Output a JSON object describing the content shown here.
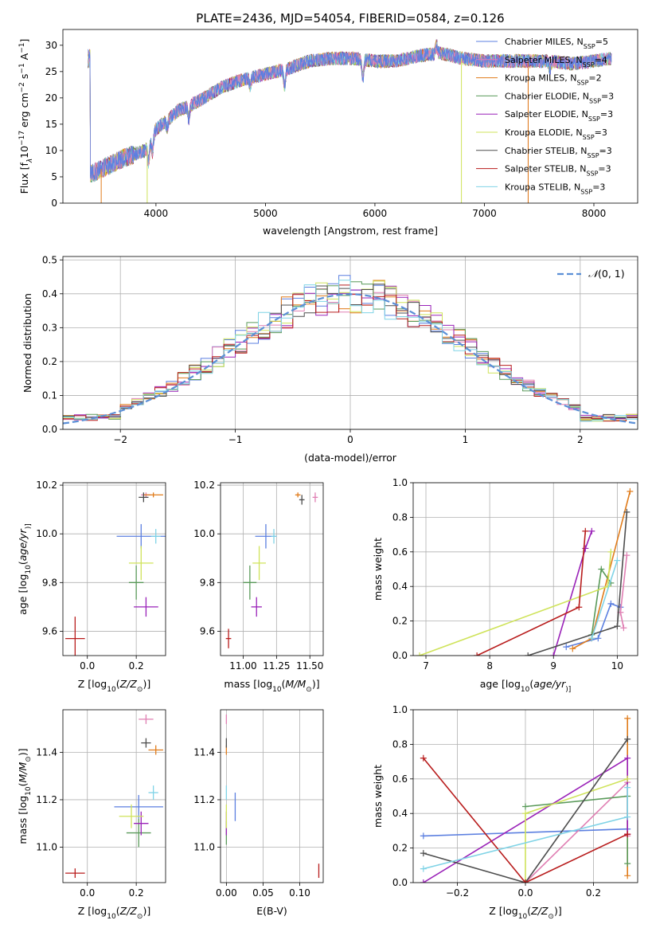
{
  "figure": {
    "title": "PLATE=2436, MJD=54054, FIBERID=0584, z=0.126"
  },
  "models": [
    {
      "name": "Chabrier MILES, N<sub>SSP</sub>=5",
      "label": "Chabrier MILES, N",
      "sub": "SSP",
      "tail": "=5",
      "color": "#5b7fe0"
    },
    {
      "name": "Salpeter MILES",
      "label": "Salpeter MILES, N",
      "sub": "SSP",
      "tail": "=4",
      "color": "#e07fb3"
    },
    {
      "name": "Kroupa MILES",
      "label": "Kroupa MILES, N",
      "sub": "SSP",
      "tail": "=2",
      "color": "#e07b1a"
    },
    {
      "name": "Chabrier ELODIE",
      "label": "Chabrier ELODIE, N",
      "sub": "SSP",
      "tail": "=3",
      "color": "#5a9a5a"
    },
    {
      "name": "Salpeter ELODIE",
      "label": "Salpeter ELODIE, N",
      "sub": "SSP",
      "tail": "=3",
      "color": "#9a22b8"
    },
    {
      "name": "Kroupa ELODIE",
      "label": "Kroupa ELODIE, N",
      "sub": "SSP",
      "tail": "=3",
      "color": "#cfe35a"
    },
    {
      "name": "Chabrier STELIB",
      "label": "Chabrier STELIB, N",
      "sub": "SSP",
      "tail": "=3",
      "color": "#4d4d4d"
    },
    {
      "name": "Salpeter STELIB",
      "label": "Salpeter STELIB, N",
      "sub": "SSP",
      "tail": "=3",
      "color": "#b81c1c"
    },
    {
      "name": "Kroupa STELIB",
      "label": "Kroupa STELIB, N",
      "sub": "SSP",
      "tail": "=3",
      "color": "#7fd3e6"
    }
  ],
  "chart_data": [
    {
      "id": "spectrum",
      "type": "line",
      "xlabel": "wavelength [Angstrom, rest frame]",
      "ylabel_parts": [
        "Flux [f",
        "λ",
        "10",
        "−17",
        " erg cm",
        "−2",
        " s",
        "−1",
        " A",
        "−1",
        "]"
      ],
      "xlim": [
        3150,
        8400
      ],
      "ylim": [
        0,
        33
      ],
      "xticks": [
        4000,
        5000,
        6000,
        7000,
        8000
      ],
      "yticks": [
        0,
        5,
        10,
        15,
        20,
        25,
        30
      ],
      "continuum": [
        [
          3400,
          5.5
        ],
        [
          3500,
          6.5
        ],
        [
          3700,
          8.5
        ],
        [
          3900,
          10
        ],
        [
          4000,
          14
        ],
        [
          4200,
          17.5
        ],
        [
          4400,
          19.5
        ],
        [
          4600,
          22
        ],
        [
          4800,
          23.5
        ],
        [
          5000,
          24.5
        ],
        [
          5200,
          25.5
        ],
        [
          5400,
          27
        ],
        [
          5600,
          27.5
        ],
        [
          5800,
          27.5
        ],
        [
          6000,
          27
        ],
        [
          6200,
          27
        ],
        [
          6400,
          28
        ],
        [
          6600,
          28.5
        ],
        [
          6800,
          27.5
        ],
        [
          7000,
          27
        ],
        [
          7200,
          27
        ],
        [
          7400,
          27
        ],
        [
          7600,
          27
        ],
        [
          7800,
          26.5
        ],
        [
          8000,
          27
        ],
        [
          8150,
          27.5
        ]
      ],
      "absorption": [
        [
          3933,
          3.5
        ],
        [
          3968,
          3
        ],
        [
          4102,
          1.5
        ],
        [
          4300,
          2.5
        ],
        [
          4861,
          1.5
        ],
        [
          5175,
          3
        ],
        [
          5890,
          3.5
        ],
        [
          6563,
          -1.5
        ],
        [
          7600,
          1.5
        ]
      ],
      "grid": false,
      "legend": "upper right"
    },
    {
      "id": "residuals",
      "type": "histogram",
      "xlabel": "(data-model)/error",
      "ylabel": "Normed distribution",
      "xlim": [
        -2.5,
        2.5
      ],
      "ylim": [
        0,
        0.51
      ],
      "xticks": [
        -2,
        -1,
        0,
        1,
        2
      ],
      "yticks": [
        0,
        0.1,
        0.2,
        0.3,
        0.4,
        0.5
      ],
      "bin_width": 0.1,
      "reference": {
        "label_parts": [
          "𝒩",
          "(0, 1)"
        ],
        "color": "#5b8fd6"
      },
      "grid": true,
      "legend": "upper right"
    },
    {
      "id": "age-vs-Z",
      "type": "scatter",
      "xlabel_parts": [
        "Z [log",
        "10",
        "(",
        "Z/Z",
        "⊙",
        ")]"
      ],
      "ylabel_parts": [
        "age  [log",
        "10",
        "(",
        "age/yr",
        ")]"
      ],
      "xlim": [
        -0.1,
        0.32
      ],
      "ylim": [
        9.5,
        10.21
      ],
      "xticks": [
        0.0,
        0.2
      ],
      "yticks": [
        9.6,
        9.8,
        10.0,
        10.2
      ],
      "points": [
        {
          "model": 0,
          "x": 0.22,
          "xerr": 0.1,
          "y": 9.99,
          "yerr": 0.05
        },
        {
          "model": 1,
          "x": 0.24,
          "xerr": 0.02,
          "y": 10.16,
          "yerr": 0.01
        },
        {
          "model": 2,
          "x": 0.27,
          "xerr": 0.04,
          "y": 10.16,
          "yerr": 0.01
        },
        {
          "model": 3,
          "x": 0.2,
          "xerr": 0.03,
          "y": 9.8,
          "yerr": 0.07
        },
        {
          "model": 4,
          "x": 0.24,
          "xerr": 0.05,
          "y": 9.7,
          "yerr": 0.04
        },
        {
          "model": 5,
          "x": 0.22,
          "xerr": 0.05,
          "y": 9.88,
          "yerr": 0.07
        },
        {
          "model": 6,
          "x": 0.23,
          "xerr": 0.02,
          "y": 10.15,
          "yerr": 0.02
        },
        {
          "model": 7,
          "x": -0.05,
          "xerr": 0.04,
          "y": 9.57,
          "yerr": 0.09
        },
        {
          "model": 8,
          "x": 0.28,
          "xerr": 0.02,
          "y": 9.99,
          "yerr": 0.03
        }
      ],
      "grid": true
    },
    {
      "id": "age-vs-mass",
      "type": "scatter",
      "xlabel_parts": [
        "mass [log",
        "10",
        "(",
        "M/M",
        "⊙",
        ")]"
      ],
      "xlim": [
        10.83,
        11.6
      ],
      "ylim": [
        9.5,
        10.21
      ],
      "xticks": [
        11.0,
        11.25,
        11.5
      ],
      "yticks": [
        9.6,
        9.8,
        10.0,
        10.2
      ],
      "points": [
        {
          "model": 0,
          "x": 11.17,
          "xerr": 0.08,
          "y": 9.99,
          "yerr": 0.05
        },
        {
          "model": 1,
          "x": 11.54,
          "xerr": 0.02,
          "y": 10.15,
          "yerr": 0.02
        },
        {
          "model": 2,
          "x": 11.41,
          "xerr": 0.02,
          "y": 10.16,
          "yerr": 0.01
        },
        {
          "model": 3,
          "x": 11.05,
          "xerr": 0.05,
          "y": 9.8,
          "yerr": 0.07
        },
        {
          "model": 4,
          "x": 11.1,
          "xerr": 0.04,
          "y": 9.7,
          "yerr": 0.04
        },
        {
          "model": 5,
          "x": 11.12,
          "xerr": 0.05,
          "y": 9.88,
          "yerr": 0.07
        },
        {
          "model": 6,
          "x": 11.44,
          "xerr": 0.02,
          "y": 10.14,
          "yerr": 0.02
        },
        {
          "model": 7,
          "x": 10.89,
          "xerr": 0.02,
          "y": 9.57,
          "yerr": 0.04
        },
        {
          "model": 8,
          "x": 11.23,
          "xerr": 0.02,
          "y": 9.99,
          "yerr": 0.03
        }
      ],
      "grid": true
    },
    {
      "id": "weight-vs-age",
      "type": "line",
      "xlabel_parts": [
        "age  [log",
        "10",
        "(",
        "age/yr",
        ")]"
      ],
      "ylabel": "mass weight",
      "xlim": [
        6.8,
        10.32
      ],
      "ylim": [
        0,
        1
      ],
      "xticks": [
        7,
        8,
        9,
        10
      ],
      "yticks": [
        0.0,
        0.2,
        0.4,
        0.6,
        0.8,
        1.0
      ],
      "series": [
        {
          "model": 0,
          "points": [
            [
              9.2,
              0.05
            ],
            [
              9.7,
              0.1
            ],
            [
              9.9,
              0.3
            ],
            [
              10.05,
              0.28
            ]
          ]
        },
        {
          "model": 1,
          "points": [
            [
              10.1,
              0.16
            ],
            [
              10.05,
              0.25
            ],
            [
              10.15,
              0.58
            ]
          ]
        },
        {
          "model": 2,
          "points": [
            [
              9.3,
              0.04
            ],
            [
              9.6,
              0.1
            ],
            [
              10.2,
              0.95
            ]
          ]
        },
        {
          "model": 3,
          "points": [
            [
              9.6,
              0.12
            ],
            [
              9.75,
              0.5
            ],
            [
              9.9,
              0.42
            ]
          ]
        },
        {
          "model": 4,
          "points": [
            [
              9.0,
              0.0
            ],
            [
              9.5,
              0.62
            ],
            [
              9.6,
              0.72
            ]
          ]
        },
        {
          "model": 5,
          "points": [
            [
              6.9,
              0.0
            ],
            [
              9.85,
              0.4
            ],
            [
              9.9,
              0.6
            ]
          ]
        },
        {
          "model": 6,
          "points": [
            [
              8.6,
              0.0
            ],
            [
              10.0,
              0.17
            ],
            [
              10.15,
              0.83
            ]
          ]
        },
        {
          "model": 7,
          "points": [
            [
              7.8,
              0.0
            ],
            [
              9.4,
              0.28
            ],
            [
              9.5,
              0.72
            ]
          ]
        },
        {
          "model": 8,
          "points": [
            [
              9.6,
              0.1
            ],
            [
              10.0,
              0.55
            ]
          ]
        }
      ],
      "grid": true
    },
    {
      "id": "mass-vs-Z",
      "type": "scatter",
      "xlabel_parts": [
        "Z [log",
        "10",
        "(",
        "Z/Z",
        "⊙",
        ")]"
      ],
      "ylabel_parts": [
        "mass [log",
        "10",
        "(",
        "M/M",
        "⊙",
        ")]"
      ],
      "xlim": [
        -0.1,
        0.32
      ],
      "ylim": [
        10.85,
        11.58
      ],
      "xticks": [
        0.0,
        0.2
      ],
      "yticks": [
        11.0,
        11.2,
        11.4
      ],
      "points": [
        {
          "model": 0,
          "x": 0.21,
          "xerr": 0.1,
          "y": 11.17,
          "yerr": 0.05
        },
        {
          "model": 1,
          "x": 0.24,
          "xerr": 0.03,
          "y": 11.54,
          "yerr": 0.02
        },
        {
          "model": 2,
          "x": 0.28,
          "xerr": 0.03,
          "y": 11.41,
          "yerr": 0.02
        },
        {
          "model": 3,
          "x": 0.21,
          "xerr": 0.05,
          "y": 11.06,
          "yerr": 0.06
        },
        {
          "model": 4,
          "x": 0.22,
          "xerr": 0.03,
          "y": 11.1,
          "yerr": 0.05
        },
        {
          "model": 5,
          "x": 0.18,
          "xerr": 0.05,
          "y": 11.13,
          "yerr": 0.05
        },
        {
          "model": 6,
          "x": 0.24,
          "xerr": 0.02,
          "y": 11.44,
          "yerr": 0.02
        },
        {
          "model": 7,
          "x": -0.05,
          "xerr": 0.04,
          "y": 10.89,
          "yerr": 0.02
        },
        {
          "model": 8,
          "x": 0.27,
          "xerr": 0.02,
          "y": 11.23,
          "yerr": 0.03
        }
      ],
      "grid": true
    },
    {
      "id": "mass-vs-ebv",
      "type": "scatter",
      "xlabel": "E(B-V)",
      "xlim": [
        -0.008,
        0.132
      ],
      "ylim": [
        10.85,
        11.58
      ],
      "xticks": [
        0.0,
        0.05,
        0.1
      ],
      "yticks": [
        11.0,
        11.2,
        11.4
      ],
      "points": [
        {
          "model": 0,
          "x": 0.012,
          "xerr": 0.0,
          "y": 11.17,
          "yerr": 0.06
        },
        {
          "model": 1,
          "x": 0.0,
          "xerr": 0.0,
          "y": 11.54,
          "yerr": 0.02
        },
        {
          "model": 2,
          "x": 0.0,
          "xerr": 0.0,
          "y": 11.41,
          "yerr": 0.02
        },
        {
          "model": 3,
          "x": 0.0,
          "xerr": 0.0,
          "y": 11.06,
          "yerr": 0.05
        },
        {
          "model": 4,
          "x": 0.0,
          "xerr": 0.0,
          "y": 11.1,
          "yerr": 0.05
        },
        {
          "model": 5,
          "x": 0.0,
          "xerr": 0.0,
          "y": 11.13,
          "yerr": 0.05
        },
        {
          "model": 6,
          "x": 0.0,
          "xerr": 0.0,
          "y": 11.44,
          "yerr": 0.02
        },
        {
          "model": 7,
          "x": 0.126,
          "xerr": 0.0,
          "y": 10.9,
          "yerr": 0.03
        },
        {
          "model": 8,
          "x": 0.0,
          "xerr": 0.0,
          "y": 11.23,
          "yerr": 0.03
        }
      ],
      "grid": true
    },
    {
      "id": "weight-vs-Z",
      "type": "line",
      "xlabel_parts": [
        "Z [log",
        "10",
        "(",
        "Z/Z",
        "⊙",
        ")]"
      ],
      "ylabel": "mass weight",
      "xlim": [
        -0.33,
        0.33
      ],
      "ylim": [
        0,
        1
      ],
      "xticks": [
        -0.2,
        0.0,
        0.2
      ],
      "yticks": [
        0.0,
        0.2,
        0.4,
        0.6,
        0.8,
        1.0
      ],
      "series": [
        {
          "model": 0,
          "points": [
            [
              -0.3,
              0.27
            ],
            [
              0.3,
              0.31
            ]
          ]
        },
        {
          "model": 1,
          "points": [
            [
              0.0,
              0.0
            ],
            [
              0.3,
              0.58
            ],
            [
              0.3,
              0.27
            ]
          ]
        },
        {
          "model": 2,
          "points": [
            [
              0.3,
              0.04
            ],
            [
              0.3,
              0.95
            ]
          ]
        },
        {
          "model": 3,
          "points": [
            [
              0.0,
              0.44
            ],
            [
              0.3,
              0.5
            ],
            [
              0.3,
              0.11
            ]
          ]
        },
        {
          "model": 4,
          "points": [
            [
              -0.3,
              0.0
            ],
            [
              0.3,
              0.72
            ],
            [
              0.3,
              0.28
            ]
          ]
        },
        {
          "model": 5,
          "points": [
            [
              0.0,
              0.0
            ],
            [
              0.0,
              0.4
            ],
            [
              0.3,
              0.6
            ]
          ]
        },
        {
          "model": 6,
          "points": [
            [
              -0.3,
              0.17
            ],
            [
              0.0,
              0.0
            ],
            [
              0.3,
              0.83
            ]
          ]
        },
        {
          "model": 7,
          "points": [
            [
              -0.3,
              0.72
            ],
            [
              0.0,
              0.0
            ],
            [
              0.3,
              0.28
            ]
          ]
        },
        {
          "model": 8,
          "points": [
            [
              -0.3,
              0.08
            ],
            [
              0.3,
              0.38
            ],
            [
              0.3,
              0.55
            ]
          ]
        }
      ],
      "grid": true
    }
  ]
}
